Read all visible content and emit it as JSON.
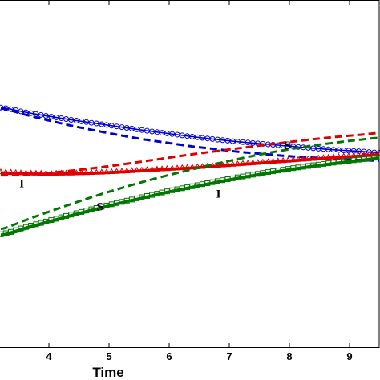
{
  "chart_data": {
    "type": "line",
    "xlabel": "Time",
    "ylabel": "",
    "title": "",
    "xlim": [
      3.2,
      9.5
    ],
    "ylim": [
      0,
      1
    ],
    "x_ticks": [
      4,
      5,
      6,
      7,
      8,
      9
    ],
    "grid": false,
    "x": [
      3.2,
      3.6,
      4.0,
      4.4,
      4.8,
      5.2,
      5.6,
      6.0,
      6.4,
      6.8,
      7.2,
      7.6,
      8.0,
      8.4,
      8.8,
      9.2,
      9.5
    ],
    "series": [
      {
        "color": "#0000cc",
        "style": "markers",
        "marker": "circle",
        "values": [
          0.69,
          0.677,
          0.665,
          0.654,
          0.644,
          0.634,
          0.624,
          0.615,
          0.606,
          0.598,
          0.591,
          0.585,
          0.579,
          0.573,
          0.568,
          0.564,
          0.56
        ]
      },
      {
        "color": "#0000cc",
        "style": "dashed",
        "values": [
          0.688,
          0.67,
          0.653,
          0.637,
          0.623,
          0.61,
          0.598,
          0.588,
          0.578,
          0.57,
          0.562,
          0.556,
          0.55,
          0.546,
          0.542,
          0.539,
          0.537
        ]
      },
      {
        "color": "#dd0000",
        "style": "solid",
        "values": [
          0.5,
          0.499,
          0.499,
          0.5,
          0.502,
          0.505,
          0.508,
          0.512,
          0.516,
          0.521,
          0.526,
          0.531,
          0.536,
          0.541,
          0.546,
          0.551,
          0.555
        ]
      },
      {
        "color": "#dd0000",
        "style": "markers",
        "marker": "triangle",
        "values": [
          0.505,
          0.502,
          0.501,
          0.502,
          0.504,
          0.507,
          0.511,
          0.515,
          0.519,
          0.524,
          0.529,
          0.534,
          0.539,
          0.544,
          0.549,
          0.553,
          0.557
        ]
      },
      {
        "color": "#dd0000",
        "style": "dashed",
        "values": [
          0.495,
          0.497,
          0.502,
          0.509,
          0.517,
          0.526,
          0.536,
          0.546,
          0.556,
          0.565,
          0.574,
          0.583,
          0.591,
          0.599,
          0.606,
          0.612,
          0.617
        ]
      },
      {
        "color": "#007700",
        "style": "dashed",
        "values": [
          0.34,
          0.365,
          0.39,
          0.414,
          0.437,
          0.458,
          0.478,
          0.496,
          0.513,
          0.529,
          0.544,
          0.558,
          0.57,
          0.581,
          0.59,
          0.598,
          0.603
        ]
      },
      {
        "color": "#007700",
        "style": "markers",
        "marker": "square",
        "values": [
          0.325,
          0.345,
          0.364,
          0.383,
          0.401,
          0.418,
          0.434,
          0.45,
          0.464,
          0.478,
          0.491,
          0.503,
          0.514,
          0.524,
          0.533,
          0.541,
          0.547
        ]
      },
      {
        "color": "#007700",
        "style": "solid",
        "values": [
          0.32,
          0.34,
          0.36,
          0.379,
          0.397,
          0.415,
          0.431,
          0.447,
          0.461,
          0.475,
          0.488,
          0.5,
          0.511,
          0.521,
          0.53,
          0.538,
          0.544
        ]
      }
    ],
    "annotations": [
      {
        "text": "I",
        "x": 3.55,
        "y": 0.472
      },
      {
        "text": "S",
        "x": 4.85,
        "y": 0.405
      },
      {
        "text": "I",
        "x": 6.82,
        "y": 0.442
      },
      {
        "text": "S",
        "x": 7.97,
        "y": 0.582
      }
    ]
  }
}
